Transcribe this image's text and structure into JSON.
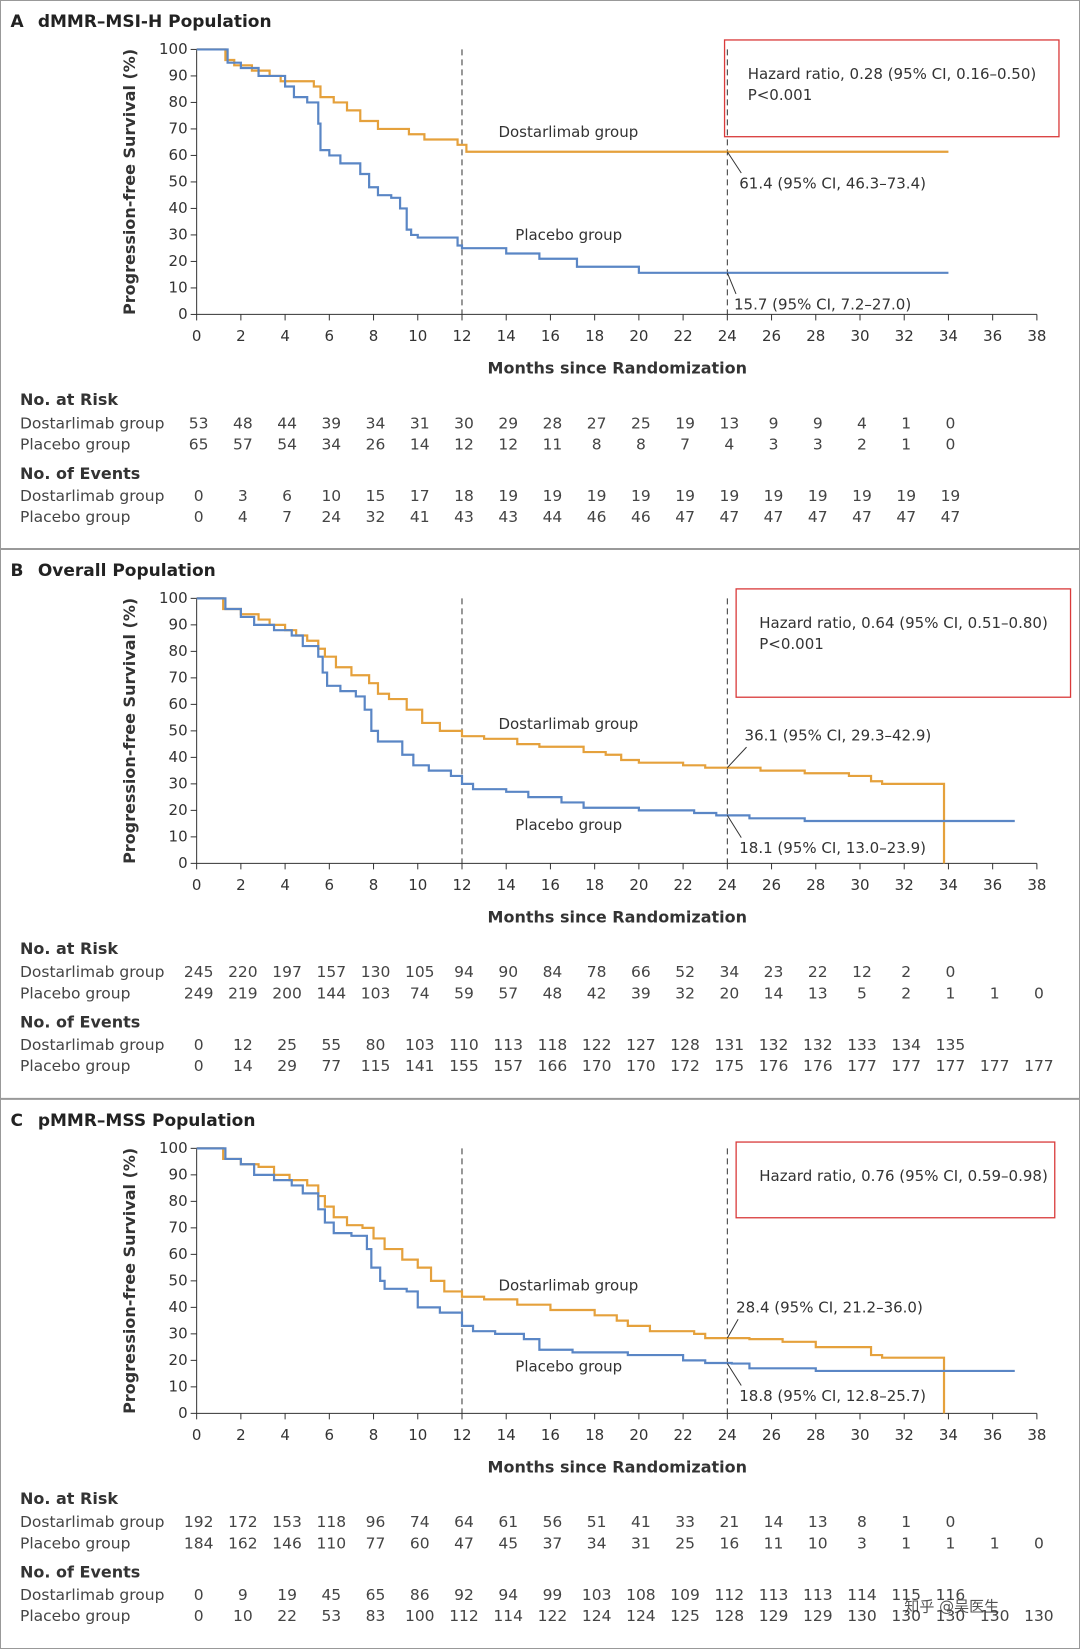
{
  "chart_data": [
    {
      "type": "line",
      "step": true,
      "panel": "A",
      "title": "dMMR–MSI-H Population",
      "xlabel": "Months since Randomization",
      "ylabel": "Progression-free Survival (%)",
      "xlim": [
        0,
        38
      ],
      "ylim": [
        0,
        100
      ],
      "xticks": [
        0,
        2,
        4,
        6,
        8,
        10,
        12,
        14,
        16,
        18,
        20,
        22,
        24,
        26,
        28,
        30,
        32,
        34,
        36,
        38
      ],
      "yticks": [
        0,
        10,
        20,
        30,
        40,
        50,
        60,
        70,
        80,
        90,
        100
      ],
      "ref_lines_x": [
        12,
        24
      ],
      "series": [
        {
          "name": "Dostarlimab group",
          "color": "#e5a13c",
          "x": [
            0,
            1.3,
            1.7,
            2.5,
            3.3,
            3.8,
            5.3,
            5.6,
            6.2,
            6.8,
            7.4,
            8.2,
            9.6,
            10.3,
            11.8,
            12.2,
            34
          ],
          "values": [
            100,
            96,
            94,
            92,
            90,
            88,
            86,
            82,
            80,
            77,
            73,
            70,
            68,
            66,
            64,
            61.4,
            61.4
          ]
        },
        {
          "name": "Placebo group",
          "color": "#5a86c5",
          "x": [
            0,
            1.4,
            2,
            2.8,
            4,
            4.4,
            5,
            5.5,
            5.6,
            6,
            6.5,
            7.4,
            7.8,
            8.2,
            8.8,
            9.2,
            9.5,
            9.7,
            10,
            11.8,
            12,
            14,
            15.5,
            17.2,
            20,
            34
          ],
          "values": [
            100,
            95,
            93,
            90,
            86,
            82,
            80,
            72,
            62,
            60,
            57,
            53,
            48,
            45,
            44,
            40,
            32,
            30,
            29,
            26,
            25,
            23,
            21,
            18,
            15.7,
            15.7
          ]
        }
      ],
      "hazard_box": [
        "Hazard ratio, 0.28 (95% CI, 0.16–0.50)",
        "P<0.001"
      ],
      "annotations": [
        {
          "text": "61.4 (95% CI, 46.3–73.4)",
          "x": 24,
          "y": 61.4
        },
        {
          "text": "15.7 (95% CI, 7.2–27.0)",
          "x": 24,
          "y": 15.7
        }
      ],
      "tables": [
        {
          "title": "No. at Risk",
          "rows": [
            {
              "name": "Dostarlimab group",
              "values": [
                53,
                48,
                44,
                39,
                34,
                31,
                30,
                29,
                28,
                27,
                25,
                19,
                13,
                9,
                9,
                4,
                1,
                0
              ]
            },
            {
              "name": "Placebo group",
              "values": [
                65,
                57,
                54,
                34,
                26,
                14,
                12,
                12,
                11,
                8,
                8,
                7,
                4,
                3,
                3,
                2,
                1,
                0
              ]
            }
          ]
        },
        {
          "title": "No. of Events",
          "rows": [
            {
              "name": "Dostarlimab group",
              "values": [
                0,
                3,
                6,
                10,
                15,
                17,
                18,
                19,
                19,
                19,
                19,
                19,
                19,
                19,
                19,
                19,
                19,
                19
              ]
            },
            {
              "name": "Placebo group",
              "values": [
                0,
                4,
                7,
                24,
                32,
                41,
                43,
                43,
                44,
                46,
                46,
                47,
                47,
                47,
                47,
                47,
                47,
                47
              ]
            }
          ]
        }
      ]
    },
    {
      "type": "line",
      "step": true,
      "panel": "B",
      "title": "Overall Population",
      "xlabel": "Months since Randomization",
      "ylabel": "Progression-free Survival (%)",
      "xlim": [
        0,
        38
      ],
      "ylim": [
        0,
        100
      ],
      "xticks": [
        0,
        2,
        4,
        6,
        8,
        10,
        12,
        14,
        16,
        18,
        20,
        22,
        24,
        26,
        28,
        30,
        32,
        34,
        36,
        38
      ],
      "yticks": [
        0,
        10,
        20,
        30,
        40,
        50,
        60,
        70,
        80,
        90,
        100
      ],
      "ref_lines_x": [
        12,
        24
      ],
      "series": [
        {
          "name": "Dostarlimab group",
          "color": "#e5a13c",
          "x": [
            0,
            1.2,
            2,
            2.8,
            3.3,
            4,
            4.5,
            5,
            5.5,
            5.8,
            6.3,
            7,
            7.8,
            8.2,
            8.7,
            9.5,
            10.2,
            11,
            12,
            13,
            14.5,
            15.5,
            17.5,
            18.5,
            19.2,
            20,
            22,
            23,
            25.5,
            27.5,
            29.5,
            30.5,
            31,
            33.8
          ],
          "values": [
            100,
            96,
            94,
            92,
            90,
            88,
            86,
            84,
            81,
            78,
            74,
            71,
            68,
            64,
            62,
            58,
            53,
            50,
            48,
            47,
            45,
            44,
            42,
            41,
            39,
            38,
            37,
            36.1,
            35,
            34,
            33,
            31,
            30,
            0
          ]
        },
        {
          "name": "Placebo group",
          "color": "#5a86c5",
          "x": [
            0,
            1.3,
            2,
            2.6,
            3.5,
            4.3,
            4.8,
            5.5,
            5.7,
            5.9,
            6.5,
            7.2,
            7.6,
            7.9,
            8.2,
            9.3,
            9.8,
            10.5,
            11.5,
            12,
            12.5,
            14,
            15,
            16.5,
            17.5,
            20,
            22.5,
            23.5,
            25,
            27.5,
            37
          ],
          "values": [
            100,
            96,
            93,
            90,
            88,
            86,
            82,
            78,
            72,
            67,
            65,
            63,
            58,
            50,
            46,
            41,
            37,
            35,
            33,
            30,
            28,
            27,
            25,
            23,
            21,
            20,
            19,
            18.1,
            17,
            16,
            16
          ]
        }
      ],
      "hazard_box": [
        "Hazard ratio, 0.64 (95% CI, 0.51–0.80)",
        "P<0.001"
      ],
      "annotations": [
        {
          "text": "36.1 (95% CI, 29.3–42.9)",
          "x": 24,
          "y": 36.1
        },
        {
          "text": "18.1 (95% CI, 13.0–23.9)",
          "x": 24,
          "y": 18.1
        }
      ],
      "tables": [
        {
          "title": "No. at Risk",
          "rows": [
            {
              "name": "Dostarlimab group",
              "values": [
                245,
                220,
                197,
                157,
                130,
                105,
                94,
                90,
                84,
                78,
                66,
                52,
                34,
                23,
                22,
                12,
                2,
                0
              ]
            },
            {
              "name": "Placebo group",
              "values": [
                249,
                219,
                200,
                144,
                103,
                74,
                59,
                57,
                48,
                42,
                39,
                32,
                20,
                14,
                13,
                5,
                2,
                1,
                1,
                0
              ]
            }
          ]
        },
        {
          "title": "No. of Events",
          "rows": [
            {
              "name": "Dostarlimab group",
              "values": [
                0,
                12,
                25,
                55,
                80,
                103,
                110,
                113,
                118,
                122,
                127,
                128,
                131,
                132,
                132,
                133,
                134,
                135
              ]
            },
            {
              "name": "Placebo group",
              "values": [
                0,
                14,
                29,
                77,
                115,
                141,
                155,
                157,
                166,
                170,
                170,
                172,
                175,
                176,
                176,
                177,
                177,
                177,
                177,
                177
              ]
            }
          ]
        }
      ]
    },
    {
      "type": "line",
      "step": true,
      "panel": "C",
      "title": "pMMR–MSS Population",
      "xlabel": "Months since Randomization",
      "ylabel": "Progression-free Survival (%)",
      "xlim": [
        0,
        38
      ],
      "ylim": [
        0,
        100
      ],
      "xticks": [
        0,
        2,
        4,
        6,
        8,
        10,
        12,
        14,
        16,
        18,
        20,
        22,
        24,
        26,
        28,
        30,
        32,
        34,
        36,
        38
      ],
      "yticks": [
        0,
        10,
        20,
        30,
        40,
        50,
        60,
        70,
        80,
        90,
        100
      ],
      "ref_lines_x": [
        12,
        24
      ],
      "series": [
        {
          "name": "Dostarlimab group",
          "color": "#e5a13c",
          "x": [
            0,
            1.2,
            2,
            2.8,
            3.5,
            4.2,
            5,
            5.5,
            5.8,
            6.2,
            6.8,
            7.5,
            8,
            8.5,
            9.3,
            10,
            10.6,
            11.2,
            12,
            13,
            14.5,
            16,
            18,
            19,
            19.5,
            20.5,
            22.5,
            23,
            25,
            26.5,
            28,
            30.5,
            31,
            33.8
          ],
          "values": [
            100,
            96,
            94,
            93,
            90,
            88,
            86,
            82,
            78,
            74,
            71,
            70,
            66,
            62,
            58,
            55,
            50,
            46,
            44,
            43,
            41,
            39,
            37,
            35,
            33,
            31,
            30,
            28.4,
            28,
            27,
            25,
            22,
            21,
            0
          ]
        },
        {
          "name": "Placebo group",
          "color": "#5a86c5",
          "x": [
            0,
            1.3,
            2,
            2.6,
            3.5,
            4.3,
            4.8,
            5.5,
            5.8,
            6.2,
            7,
            7.7,
            7.9,
            8.3,
            8.5,
            9.5,
            10,
            11,
            12,
            12.5,
            13.5,
            14.8,
            15.5,
            17,
            19.5,
            22,
            23,
            24.2,
            25,
            28,
            37
          ],
          "values": [
            100,
            96,
            94,
            90,
            88,
            86,
            83,
            77,
            72,
            68,
            67,
            62,
            55,
            50,
            47,
            46,
            40,
            38,
            33,
            31,
            30,
            28,
            24,
            23,
            22,
            20,
            19,
            18.8,
            17,
            16,
            16
          ]
        }
      ],
      "hazard_box": [
        "Hazard ratio, 0.76 (95% CI, 0.59–0.98)"
      ],
      "annotations": [
        {
          "text": "28.4 (95% CI, 21.2–36.0)",
          "x": 24,
          "y": 28.4
        },
        {
          "text": "18.8 (95% CI, 12.8–25.7)",
          "x": 24,
          "y": 18.8
        }
      ],
      "tables": [
        {
          "title": "No. at Risk",
          "rows": [
            {
              "name": "Dostarlimab group",
              "values": [
                192,
                172,
                153,
                118,
                96,
                74,
                64,
                61,
                56,
                51,
                41,
                33,
                21,
                14,
                13,
                8,
                1,
                0
              ]
            },
            {
              "name": "Placebo group",
              "values": [
                184,
                162,
                146,
                110,
                77,
                60,
                47,
                45,
                37,
                34,
                31,
                25,
                16,
                11,
                10,
                3,
                1,
                1,
                1,
                0
              ]
            }
          ]
        },
        {
          "title": "No. of Events",
          "rows": [
            {
              "name": "Dostarlimab group",
              "values": [
                0,
                9,
                19,
                45,
                65,
                86,
                92,
                94,
                99,
                103,
                108,
                109,
                112,
                113,
                113,
                114,
                115,
                116
              ]
            },
            {
              "name": "Placebo group",
              "values": [
                0,
                10,
                22,
                53,
                83,
                100,
                112,
                114,
                122,
                124,
                124,
                125,
                128,
                129,
                129,
                130,
                130,
                130,
                130,
                130
              ]
            }
          ]
        }
      ]
    }
  ],
  "watermark": "知乎 @吴医生"
}
